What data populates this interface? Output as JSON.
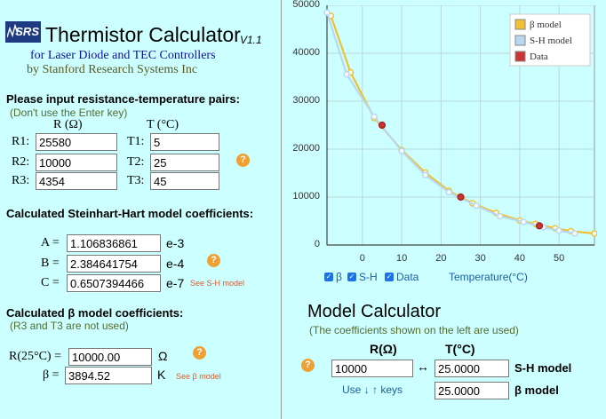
{
  "header": {
    "logo_text": "SRS",
    "title": "Thermistor Calculator",
    "version": "V1.1",
    "subtitle1": "for Laser Diode and TEC Controllers",
    "subtitle2": "by Stanford Research Systems Inc"
  },
  "pairs": {
    "heading": "Please input resistance-temperature pairs:",
    "note": "(Don't use the Enter key)",
    "col_r": "R (Ω)",
    "col_t": "T (°C)",
    "rows": [
      {
        "r_label": "R1:",
        "r_value": "25580",
        "t_label": "T1:",
        "t_value": "5"
      },
      {
        "r_label": "R2:",
        "r_value": "10000",
        "t_label": "T2:",
        "t_value": "25"
      },
      {
        "r_label": "R3:",
        "r_value": "4354",
        "t_label": "T3:",
        "t_value": "45"
      }
    ]
  },
  "sh": {
    "heading": "Calculated Steinhart-Hart model coefficients:",
    "rows": [
      {
        "label": "A =",
        "value": "1.106836861",
        "exp": "e-3"
      },
      {
        "label": "B =",
        "value": "2.384641754",
        "exp": "e-4"
      },
      {
        "label": "C =",
        "value": "0.6507394466",
        "exp": "e-7"
      }
    ],
    "see_link": "See S-H model"
  },
  "beta": {
    "heading": "Calculated β model coefficients:",
    "note": "(R3 and T3 are not used)",
    "r25_label": "R(25°C) =",
    "r25_value": "10000.00",
    "r25_unit": "Ω",
    "beta_label": "β =",
    "beta_value": "3894.52",
    "beta_unit": "K",
    "see_link": "See β model"
  },
  "chart_data": {
    "type": "line",
    "xlabel": "Temperature(°C)",
    "x_ticks": [
      0,
      10,
      20,
      30,
      40,
      50
    ],
    "y_ticks": [
      0,
      10000,
      20000,
      30000,
      40000,
      50000
    ],
    "xlim": [
      -9,
      59
    ],
    "ylim": [
      0,
      50000
    ],
    "grid": true,
    "legend_position": "top-right",
    "series": [
      {
        "name": "β model",
        "color": "#f0c030",
        "x": [
          -8,
          -3,
          3,
          10,
          16,
          22,
          28,
          34,
          40,
          44,
          49,
          53,
          59
        ],
        "y": [
          47800,
          36000,
          26500,
          19800,
          15100,
          11300,
          8700,
          6700,
          5100,
          4400,
          3500,
          2900,
          2400
        ]
      },
      {
        "name": "S-H model",
        "color": "#b8d8f0",
        "x": [
          -9,
          -4,
          3,
          10,
          16,
          22,
          29,
          35,
          41,
          46,
          50,
          54
        ],
        "y": [
          48500,
          35600,
          26800,
          19600,
          14600,
          11000,
          8200,
          6000,
          4800,
          3700,
          3000,
          2400
        ]
      },
      {
        "name": "Data",
        "color": "#cc3333",
        "x": [
          5,
          25,
          45
        ],
        "y": [
          25000,
          10000,
          4000
        ]
      }
    ]
  },
  "chart_controls": {
    "beta_cb": "β",
    "sh_cb": "S-H",
    "data_cb": "Data",
    "temp_label": "Temperature(°C)"
  },
  "model_calc": {
    "title": "Model Calculator",
    "note": "(The coefficients shown on the left are used)",
    "r_head": "R(Ω)",
    "t_head": "T(°C)",
    "r_value": "10000",
    "arrow": "↔",
    "sh_t_value": "25.0000",
    "sh_label": "S-H model",
    "keys_hint": "Use ↓ ↑ keys",
    "beta_t_value": "25.0000",
    "beta_label": "β model"
  },
  "help_icon": "?"
}
